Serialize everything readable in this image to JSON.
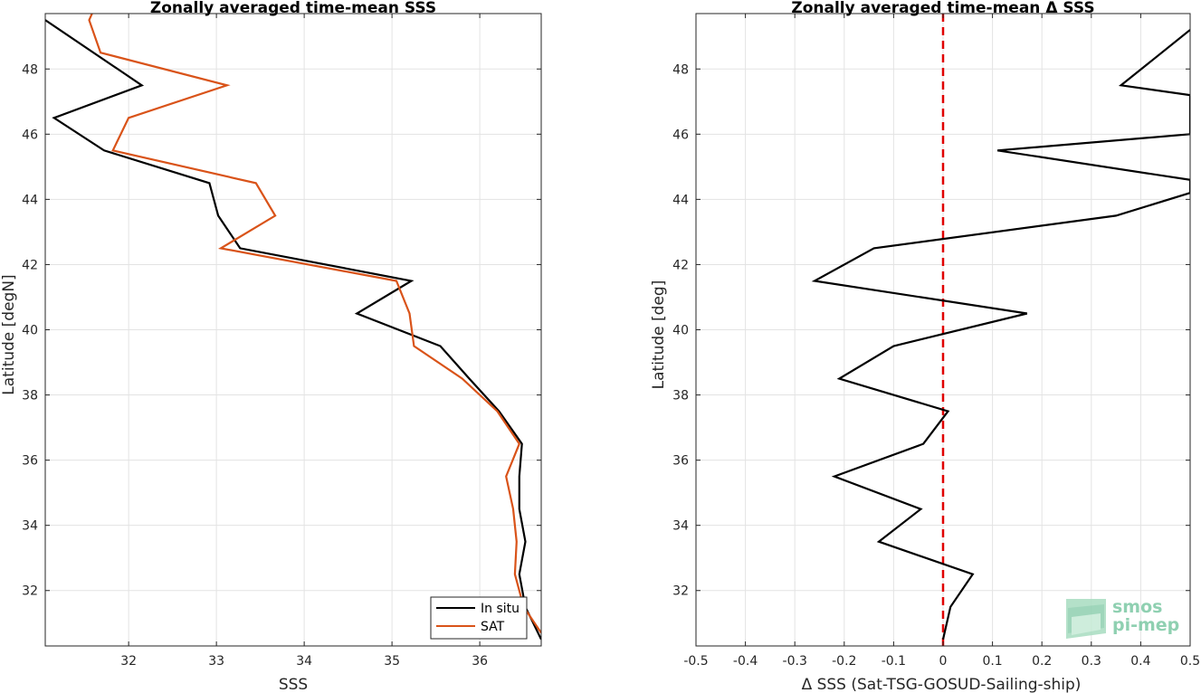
{
  "chart_data": [
    {
      "type": "line",
      "title": "Zonally averaged time-mean SSS",
      "xlabel": "SSS",
      "ylabel": "Latitude [degN]",
      "xlim": [
        31.05,
        36.7
      ],
      "ylim": [
        30.3,
        49.7
      ],
      "xticks": [
        32,
        33,
        34,
        35,
        36
      ],
      "yticks": [
        32,
        34,
        36,
        38,
        40,
        42,
        44,
        46,
        48
      ],
      "grid": true,
      "legend_position": "bottom-right",
      "series": [
        {
          "name": "In situ",
          "color": "#000000",
          "points": [
            [
              31.05,
              49.5
            ],
            [
              32.15,
              47.5
            ],
            [
              31.15,
              46.5
            ],
            [
              31.72,
              45.5
            ],
            [
              32.92,
              44.5
            ],
            [
              33.02,
              43.5
            ],
            [
              33.27,
              42.5
            ],
            [
              35.22,
              41.5
            ],
            [
              34.6,
              40.5
            ],
            [
              35.55,
              39.5
            ],
            [
              35.88,
              38.5
            ],
            [
              36.22,
              37.5
            ],
            [
              36.48,
              36.5
            ],
            [
              36.45,
              35.5
            ],
            [
              36.45,
              34.5
            ],
            [
              36.52,
              33.5
            ],
            [
              36.45,
              32.5
            ],
            [
              36.52,
              31.5
            ],
            [
              36.7,
              30.5
            ]
          ]
        },
        {
          "name": "SAT",
          "color": "#d95319",
          "points": [
            [
              31.6,
              49.8
            ],
            [
              31.55,
              49.5
            ],
            [
              31.68,
              48.5
            ],
            [
              33.12,
              47.5
            ],
            [
              32.0,
              46.5
            ],
            [
              31.82,
              45.5
            ],
            [
              33.45,
              44.5
            ],
            [
              33.67,
              43.5
            ],
            [
              33.05,
              42.5
            ],
            [
              35.05,
              41.5
            ],
            [
              35.2,
              40.5
            ],
            [
              35.25,
              39.5
            ],
            [
              35.8,
              38.5
            ],
            [
              36.2,
              37.5
            ],
            [
              36.45,
              36.5
            ],
            [
              36.3,
              35.5
            ],
            [
              36.38,
              34.5
            ],
            [
              36.42,
              33.5
            ],
            [
              36.4,
              32.5
            ],
            [
              36.5,
              31.5
            ],
            [
              36.7,
              30.7
            ]
          ]
        }
      ]
    },
    {
      "type": "line",
      "title": "Zonally averaged time-mean Δ SSS",
      "xlabel": "Δ SSS (Sat-TSG-GOSUD-Sailing-ship)",
      "ylabel": "Latitude [deg]",
      "xlim": [
        -0.5,
        0.5
      ],
      "ylim": [
        30.3,
        49.7
      ],
      "xticks": [
        -0.5,
        -0.4,
        -0.3,
        -0.2,
        -0.1,
        0,
        0.1,
        0.2,
        0.3,
        0.4,
        0.5
      ],
      "xtick_labels": [
        "-0.5",
        "-0.4",
        "-0.3",
        "-0.2",
        "-0.1",
        "0",
        "0.1",
        "0.2",
        "0.3",
        "0.4",
        "0.5"
      ],
      "yticks": [
        32,
        34,
        36,
        38,
        40,
        42,
        44,
        46,
        48
      ],
      "grid": true,
      "reference_line": {
        "x": 0,
        "color": "#e00000",
        "style": "dashed"
      },
      "series": [
        {
          "name": "",
          "color": "#000000",
          "points": [
            [
              0.5,
              49.2
            ],
            [
              0.36,
              47.5
            ],
            [
              0.5,
              47.2
            ],
            [
              0.5,
              46.0
            ],
            [
              0.11,
              45.5
            ],
            [
              0.5,
              44.6
            ],
            [
              0.5,
              44.2
            ],
            [
              0.35,
              43.5
            ],
            [
              -0.14,
              42.5
            ],
            [
              -0.26,
              41.5
            ],
            [
              0.17,
              40.5
            ],
            [
              -0.1,
              39.5
            ],
            [
              -0.21,
              38.5
            ],
            [
              0.01,
              37.5
            ],
            [
              -0.04,
              36.5
            ],
            [
              -0.22,
              35.5
            ],
            [
              -0.045,
              34.5
            ],
            [
              -0.13,
              33.5
            ],
            [
              0.06,
              32.5
            ],
            [
              0.015,
              31.5
            ],
            [
              0.0,
              30.5
            ]
          ]
        }
      ]
    }
  ],
  "legend": {
    "items": [
      "In situ",
      "SAT"
    ]
  },
  "logo": {
    "line1": "smos",
    "line2": "pi-mep"
  }
}
